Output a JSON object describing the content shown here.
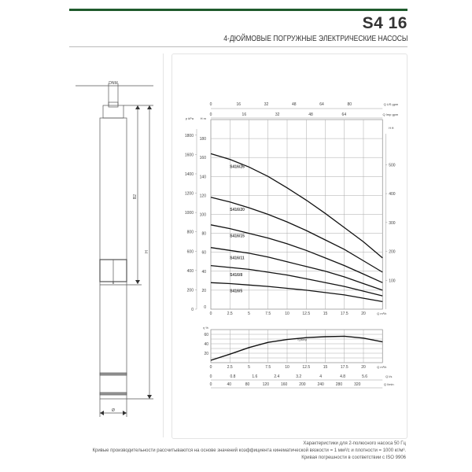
{
  "header": {
    "title": "S4 16",
    "subtitle": "4-ДЮЙМОВЫЕ ПОГРУЖНЫЕ ЭЛЕКТРИЧЕСКИЕ НАСОСЫ",
    "accent_color": "#1f5a2c"
  },
  "drawing": {
    "dim_top": "DNM",
    "dim_b2": "B2",
    "dim_h": "H",
    "dim_b": "B",
    "dim_diameter": "Ø"
  },
  "footer": {
    "lines": [
      "Характеристики для 2-полюсного насоса 50 Гц",
      "Кривые производительности рассчитываются на основе значений коэффициента кинематической вязкости = 1 мм²/с и плотности = 1000 кг/м³.",
      "Кривая погрешности в соответствии с ISO 9906"
    ]
  },
  "chart_data": [
    {
      "type": "line",
      "title": "",
      "xlabel": "Q m³/h",
      "ylabel": "H m",
      "xlim": [
        0,
        22.5
      ],
      "ylim": [
        0,
        200
      ],
      "grid": true,
      "x_ticks": [
        "0",
        "2.5",
        "5",
        "7.5",
        "10",
        "12.5",
        "15",
        "17.5",
        "20"
      ],
      "y_ticks": [
        "20",
        "40",
        "60",
        "80",
        "100",
        "120",
        "140",
        "160",
        "180"
      ],
      "left_axis": {
        "label": "p kPa",
        "ticks": [
          "0",
          "200",
          "400",
          "600",
          "800",
          "1000",
          "1200",
          "1400",
          "1600",
          "1800"
        ]
      },
      "right_axis": {
        "label": "H ft",
        "ticks": [
          "100",
          "200",
          "300",
          "400",
          "500"
        ]
      },
      "top_axes": [
        {
          "label": "Q US gpm",
          "ticks": [
            "0",
            "16",
            "32",
            "48",
            "64",
            "80"
          ]
        },
        {
          "label": "Q Imp gpm",
          "ticks": [
            "0",
            "16",
            "32",
            "48",
            "64"
          ]
        }
      ],
      "series": [
        {
          "name": "S416/26",
          "x": [
            0,
            2.5,
            5,
            7.5,
            10,
            12.5,
            15,
            17.5,
            20,
            22.5
          ],
          "y": [
            164,
            158,
            150,
            140,
            128,
            115,
            101,
            86,
            71,
            54
          ]
        },
        {
          "name": "S416/20",
          "x": [
            0,
            2.5,
            5,
            7.5,
            10,
            12.5,
            15,
            17.5,
            20,
            22.5
          ],
          "y": [
            118,
            113,
            107,
            100,
            92,
            83,
            73,
            63,
            51,
            39
          ]
        },
        {
          "name": "S416/15",
          "x": [
            0,
            2.5,
            5,
            7.5,
            10,
            12.5,
            15,
            17.5,
            20,
            22.5
          ],
          "y": [
            89,
            85,
            80,
            75,
            69,
            62,
            54,
            46,
            37,
            28
          ]
        },
        {
          "name": "S416/11",
          "x": [
            0,
            2.5,
            5,
            7.5,
            10,
            12.5,
            15,
            17.5,
            20,
            22.5
          ],
          "y": [
            65,
            62,
            59,
            55,
            50,
            45,
            40,
            34,
            27,
            20
          ]
        },
        {
          "name": "S416/8",
          "x": [
            0,
            2.5,
            5,
            7.5,
            10,
            12.5,
            15,
            17.5,
            20,
            22.5
          ],
          "y": [
            46,
            44,
            42,
            39,
            36,
            32,
            28,
            24,
            19,
            14
          ]
        },
        {
          "name": "S416/5",
          "x": [
            0,
            2.5,
            5,
            7.5,
            10,
            12.5,
            15,
            17.5,
            20,
            22.5
          ],
          "y": [
            28,
            27,
            25.5,
            24,
            22,
            20,
            17.5,
            15,
            11.5,
            8
          ]
        }
      ]
    },
    {
      "type": "line",
      "title": "",
      "ylabel": "η %",
      "xlabel": "Q m³/h",
      "xlim": [
        0,
        22.5
      ],
      "ylim": [
        0,
        70
      ],
      "grid": true,
      "y_ticks": [
        "20",
        "40",
        "60"
      ],
      "x_ticks": [
        "0",
        "2.5",
        "5",
        "7.5",
        "10",
        "12.5",
        "15",
        "17.5",
        "20"
      ],
      "bottom_axes": [
        {
          "label": "Q l/s",
          "ticks": [
            "0",
            "0.8",
            "1.6",
            "2.4",
            "3.2",
            "4",
            "4.8",
            "5.6"
          ]
        },
        {
          "label": "Q l/min",
          "ticks": [
            "0",
            "40",
            "80",
            "120",
            "160",
            "200",
            "240",
            "280",
            "320"
          ]
        }
      ],
      "series": [
        {
          "name": "η pump",
          "x": [
            0,
            2.5,
            5,
            7.5,
            10,
            12.5,
            15,
            17.5,
            20,
            22.5
          ],
          "y": [
            5,
            18,
            32,
            43,
            49,
            53,
            55,
            56,
            52,
            44
          ]
        }
      ]
    }
  ]
}
